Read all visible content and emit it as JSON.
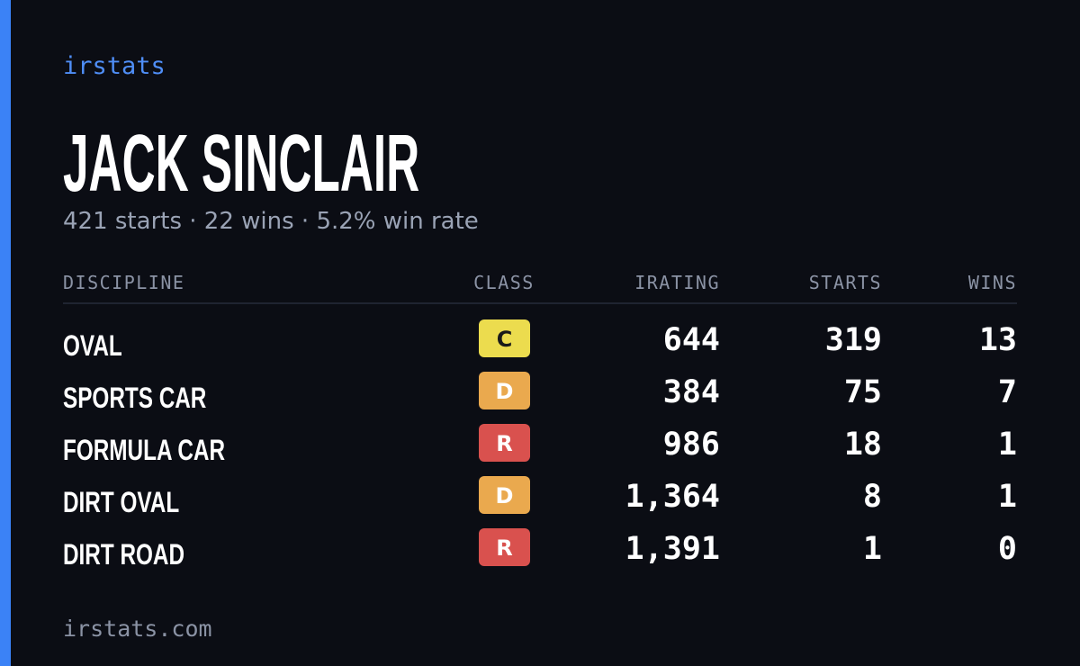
{
  "brand": "irstats",
  "title": "JACK SINCLAIR",
  "subtitle": "421 starts · 22 wins · 5.2% win rate",
  "table": {
    "columns": [
      "DISCIPLINE",
      "CLASS",
      "IRATING",
      "STARTS",
      "WINS"
    ],
    "rows": [
      {
        "discipline": "OVAL",
        "class": "C",
        "class_color": "#ecdc4e",
        "class_text_color": "#1a1a1a",
        "irating": "644",
        "starts": "319",
        "wins": "13"
      },
      {
        "discipline": "SPORTS CAR",
        "class": "D",
        "class_color": "#eaa94e",
        "class_text_color": "#ffffff",
        "irating": "384",
        "starts": "75",
        "wins": "7"
      },
      {
        "discipline": "FORMULA CAR",
        "class": "R",
        "class_color": "#d9514e",
        "class_text_color": "#ffffff",
        "irating": "986",
        "starts": "18",
        "wins": "1"
      },
      {
        "discipline": "DIRT OVAL",
        "class": "D",
        "class_color": "#eaa94e",
        "class_text_color": "#ffffff",
        "irating": "1,364",
        "starts": "8",
        "wins": "1"
      },
      {
        "discipline": "DIRT ROAD",
        "class": "R",
        "class_color": "#d9514e",
        "class_text_color": "#ffffff",
        "irating": "1,391",
        "starts": "1",
        "wins": "0"
      }
    ]
  },
  "footer": "irstats.com"
}
